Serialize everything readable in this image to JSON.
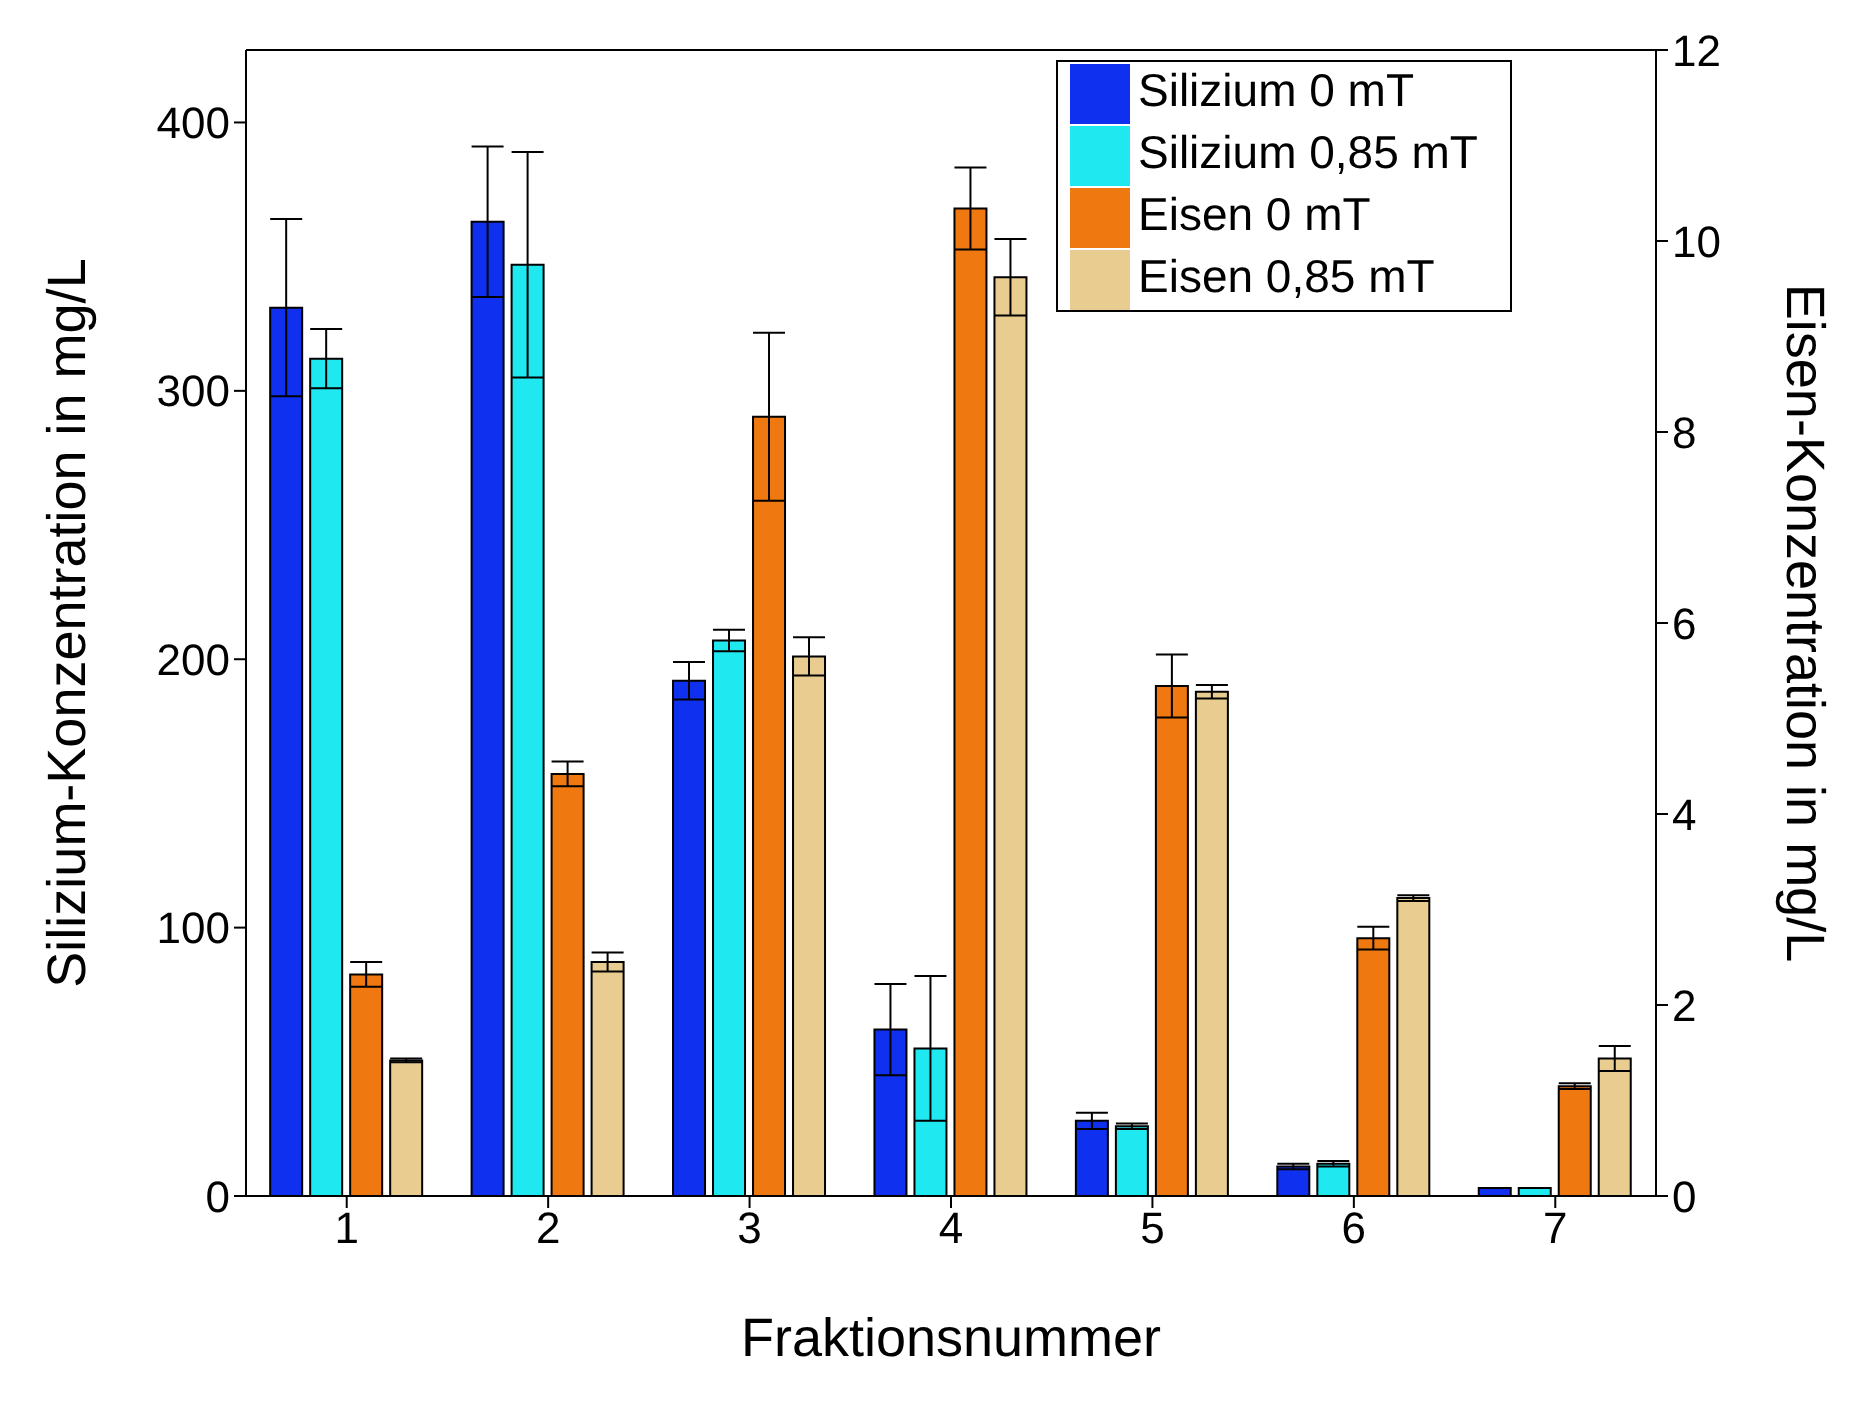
{
  "chart_data": {
    "type": "bar",
    "xlabel": "Fraktionsnummer",
    "ylabel": "Silizium-Konzentration in mg/L",
    "y2label": "Eisen-Konzentration in mg/L",
    "categories": [
      "1",
      "2",
      "3",
      "4",
      "5",
      "6",
      "7"
    ],
    "ylim": [
      0,
      427
    ],
    "yticks": [
      0,
      100,
      200,
      300,
      400
    ],
    "y2lim": [
      0,
      12
    ],
    "y2ticks": [
      0,
      2,
      4,
      6,
      8,
      10,
      12
    ],
    "legend": "top right",
    "series": [
      {
        "name": "Silizium 0 mT",
        "color": "#1030f0",
        "axis": "y",
        "values": [
          331,
          363,
          192,
          62,
          28,
          11,
          3
        ],
        "errors": [
          33,
          28,
          7,
          17,
          3,
          1,
          null
        ]
      },
      {
        "name": "Silizium 0,85 mT",
        "color": "#20e8f0",
        "axis": "y",
        "values": [
          312,
          347,
          207,
          55,
          26,
          12,
          3
        ],
        "errors": [
          11,
          42,
          4,
          27,
          1,
          1,
          null
        ]
      },
      {
        "name": "Eisen 0 mT",
        "color": "#f07810",
        "axis": "y2",
        "values": [
          2.32,
          4.42,
          8.16,
          10.34,
          5.34,
          2.7,
          1.15
        ],
        "errors": [
          0.13,
          0.13,
          0.88,
          0.43,
          0.33,
          0.12,
          0.03
        ]
      },
      {
        "name": "Eisen 0,85 mT",
        "color": "#e8cc90",
        "axis": "y2",
        "values": [
          1.42,
          2.45,
          5.65,
          9.62,
          5.28,
          3.12,
          1.44
        ],
        "errors": [
          0.02,
          0.1,
          0.2,
          0.4,
          0.07,
          0.03,
          0.13
        ]
      }
    ]
  }
}
